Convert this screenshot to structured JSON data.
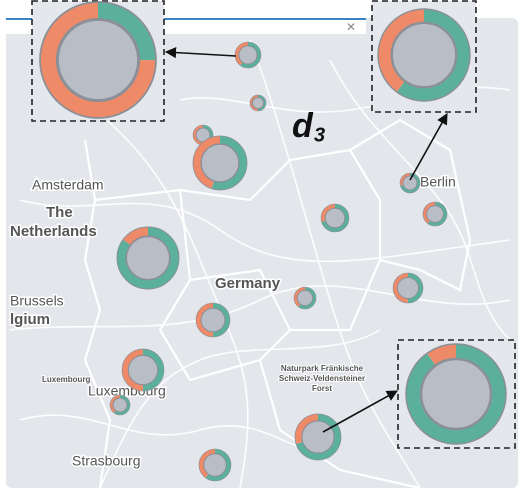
{
  "labels": {
    "amsterdam": "Amsterdam",
    "the": "The",
    "netherlands": "Netherlands",
    "brussels": "Brussels",
    "belgium": "lgium",
    "germany": "Germany",
    "luxembourg": "Luxembourg",
    "luxembourg_city": "Luxembourg",
    "strasbourg": "Strasbourg",
    "berlin": "Berlin",
    "park_1": "Naturpark Fränkische",
    "park_2": "Schweiz-Veldensteiner",
    "park_3": "Forst",
    "annotation": "d",
    "annotation_sub": "3"
  },
  "colors": {
    "first": "#5bb09c",
    "second": "#ee8a68",
    "center": "#b9bdc6"
  },
  "markers": [
    {
      "first": 60,
      "second": 40
    },
    {
      "first": 50,
      "second": 50
    },
    {
      "first": 50,
      "second": 50
    },
    {
      "first": 55,
      "second": 45
    },
    {
      "first": 85,
      "second": 15
    },
    {
      "first": 70,
      "second": 30
    },
    {
      "first": 70,
      "second": 30
    },
    {
      "first": 60,
      "second": 40
    },
    {
      "first": 50,
      "second": 50
    },
    {
      "first": 60,
      "second": 40
    },
    {
      "first": 50,
      "second": 50
    },
    {
      "first": 50,
      "second": 50
    },
    {
      "first": 60,
      "second": 40
    },
    {
      "first": 70,
      "second": 30
    },
    {
      "first": 60,
      "second": 40
    }
  ],
  "insets": [
    {
      "first": 25,
      "second": 75
    },
    {
      "first": 60,
      "second": 40
    },
    {
      "first": 90,
      "second": 10
    }
  ]
}
